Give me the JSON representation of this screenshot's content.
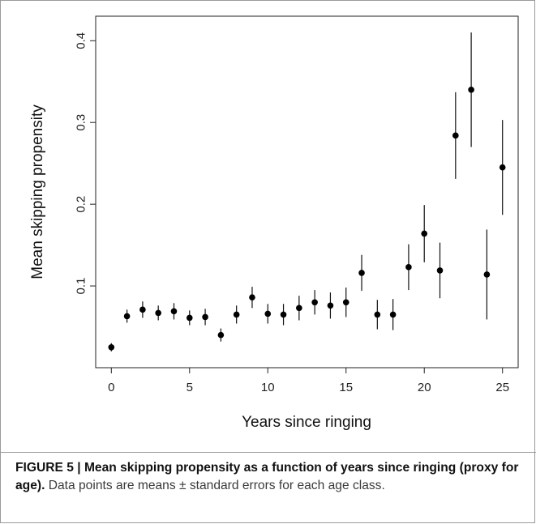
{
  "caption": {
    "label": "FIGURE 5 | Mean skipping propensity as a function of years since ringing (proxy for age).",
    "text": " Data points are means ± standard errors for each age class."
  },
  "chart_data": {
    "type": "scatter",
    "title": "",
    "xlabel": "Years since ringing",
    "ylabel": "Mean skipping propensity",
    "xlim": [
      -1,
      26
    ],
    "ylim": [
      0,
      0.43
    ],
    "xticks": [
      0,
      5,
      10,
      15,
      20,
      25
    ],
    "yticks": [
      0.1,
      0.2,
      0.3,
      0.4
    ],
    "grid": false,
    "error_bars": true,
    "points": [
      {
        "x": 0,
        "y": 0.025,
        "se": 0.005
      },
      {
        "x": 1,
        "y": 0.063,
        "se": 0.008
      },
      {
        "x": 2,
        "y": 0.071,
        "se": 0.01
      },
      {
        "x": 3,
        "y": 0.067,
        "se": 0.009
      },
      {
        "x": 4,
        "y": 0.069,
        "se": 0.01
      },
      {
        "x": 5,
        "y": 0.061,
        "se": 0.009
      },
      {
        "x": 6,
        "y": 0.062,
        "se": 0.01
      },
      {
        "x": 7,
        "y": 0.04,
        "se": 0.008
      },
      {
        "x": 8,
        "y": 0.065,
        "se": 0.011
      },
      {
        "x": 9,
        "y": 0.086,
        "se": 0.013
      },
      {
        "x": 10,
        "y": 0.066,
        "se": 0.012
      },
      {
        "x": 11,
        "y": 0.065,
        "se": 0.013
      },
      {
        "x": 12,
        "y": 0.073,
        "se": 0.015
      },
      {
        "x": 13,
        "y": 0.08,
        "se": 0.015
      },
      {
        "x": 14,
        "y": 0.076,
        "se": 0.016
      },
      {
        "x": 15,
        "y": 0.08,
        "se": 0.018
      },
      {
        "x": 16,
        "y": 0.116,
        "se": 0.022
      },
      {
        "x": 17,
        "y": 0.065,
        "se": 0.018
      },
      {
        "x": 18,
        "y": 0.065,
        "se": 0.019
      },
      {
        "x": 19,
        "y": 0.123,
        "se": 0.028
      },
      {
        "x": 20,
        "y": 0.164,
        "se": 0.035
      },
      {
        "x": 21,
        "y": 0.119,
        "se": 0.034
      },
      {
        "x": 22,
        "y": 0.284,
        "se": 0.053
      },
      {
        "x": 23,
        "y": 0.34,
        "se": 0.07
      },
      {
        "x": 24,
        "y": 0.114,
        "se": 0.055
      },
      {
        "x": 25,
        "y": 0.245,
        "se": 0.058
      }
    ]
  }
}
